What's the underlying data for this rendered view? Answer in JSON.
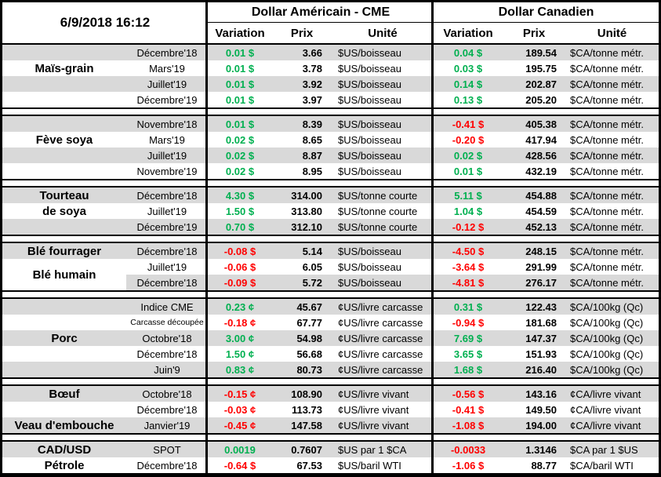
{
  "header": {
    "date": "6/9/2018 16:12",
    "us_title": "Dollar Américain - CME",
    "ca_title": "Dollar Canadien",
    "variation": "Variation",
    "prix": "Prix",
    "unite": "Unité"
  },
  "colors": {
    "green": "#00B050",
    "red": "#FF0000",
    "stripe": "#D9D9D9",
    "border": "#000000"
  },
  "groups": [
    {
      "id": "mais-grain",
      "rows": [
        {
          "shaded": true,
          "name": "",
          "month": "Décembre'18",
          "us": [
            "0.01 $",
            "green",
            "3.66",
            "$US/boisseau"
          ],
          "ca": [
            "0.04 $",
            "green",
            "189.54",
            "$CA/tonne métr."
          ]
        },
        {
          "shaded": false,
          "name": "Maïs-grain",
          "month": "Mars'19",
          "us": [
            "0.01 $",
            "green",
            "3.78",
            "$US/boisseau"
          ],
          "ca": [
            "0.03 $",
            "green",
            "195.75",
            "$CA/tonne métr."
          ]
        },
        {
          "shaded": true,
          "name": "",
          "month": "Juillet'19",
          "us": [
            "0.01 $",
            "green",
            "3.92",
            "$US/boisseau"
          ],
          "ca": [
            "0.14 $",
            "green",
            "202.87",
            "$CA/tonne métr."
          ]
        },
        {
          "shaded": false,
          "name": "",
          "month": "Décembre'19",
          "us": [
            "0.01 $",
            "green",
            "3.97",
            "$US/boisseau"
          ],
          "ca": [
            "0.13 $",
            "green",
            "205.20",
            "$CA/tonne métr."
          ]
        }
      ]
    },
    {
      "id": "feve-soya",
      "rows": [
        {
          "shaded": true,
          "name": "",
          "month": "Novembre'18",
          "us": [
            "0.01 $",
            "green",
            "8.39",
            "$US/boisseau"
          ],
          "ca": [
            "-0.41 $",
            "red",
            "405.38",
            "$CA/tonne métr."
          ]
        },
        {
          "shaded": false,
          "name": "Fève soya",
          "month": "Mars'19",
          "us": [
            "0.02 $",
            "green",
            "8.65",
            "$US/boisseau"
          ],
          "ca": [
            "-0.20 $",
            "red",
            "417.94",
            "$CA/tonne métr."
          ]
        },
        {
          "shaded": true,
          "name": "",
          "month": "Juillet'19",
          "us": [
            "0.02 $",
            "green",
            "8.87",
            "$US/boisseau"
          ],
          "ca": [
            "0.02 $",
            "green",
            "428.56",
            "$CA/tonne métr."
          ]
        },
        {
          "shaded": false,
          "name": "",
          "month": "Novembre'19",
          "us": [
            "0.02 $",
            "green",
            "8.95",
            "$US/boisseau"
          ],
          "ca": [
            "0.01 $",
            "green",
            "432.19",
            "$CA/tonne métr."
          ]
        }
      ]
    },
    {
      "id": "tourteau-de-soya",
      "rows": [
        {
          "shaded": true,
          "name": "Tourteau",
          "month": "Décembre'18",
          "us": [
            "4.30 $",
            "green",
            "314.00",
            "$US/tonne courte"
          ],
          "ca": [
            "5.11 $",
            "green",
            "454.88",
            "$CA/tonne métr."
          ]
        },
        {
          "shaded": false,
          "name": "de soya",
          "month": "Juillet'19",
          "us": [
            "1.50 $",
            "green",
            "313.80",
            "$US/tonne courte"
          ],
          "ca": [
            "1.04 $",
            "green",
            "454.59",
            "$CA/tonne métr."
          ]
        },
        {
          "shaded": true,
          "name": "",
          "month": "Décembre'19",
          "us": [
            "0.70 $",
            "green",
            "312.10",
            "$US/tonne courte"
          ],
          "ca": [
            "-0.12 $",
            "red",
            "452.13",
            "$CA/tonne métr."
          ]
        }
      ]
    },
    {
      "id": "ble",
      "rows": [
        {
          "shaded": true,
          "name": "Blé fourrager",
          "month": "Décembre'18",
          "us": [
            "-0.08 $",
            "red",
            "5.14",
            "$US/boisseau"
          ],
          "ca": [
            "-4.50 $",
            "red",
            "248.15",
            "$CA/tonne métr."
          ]
        },
        {
          "shaded": false,
          "name": "Blé humain",
          "name_span": 2,
          "month": "Juillet'19",
          "us": [
            "-0.06 $",
            "red",
            "6.05",
            "$US/boisseau"
          ],
          "ca": [
            "-3.64 $",
            "red",
            "291.99",
            "$CA/tonne métr."
          ]
        },
        {
          "shaded": true,
          "name": "",
          "name_white": true,
          "month": "Décembre'18",
          "us": [
            "-0.09 $",
            "red",
            "5.72",
            "$US/boisseau"
          ],
          "ca": [
            "-4.81 $",
            "red",
            "276.17",
            "$CA/tonne métr."
          ]
        }
      ]
    },
    {
      "id": "porc",
      "rows": [
        {
          "shaded": true,
          "name": "",
          "month": "Indice CME",
          "us": [
            "0.23 ¢",
            "green",
            "45.67",
            "¢US/livre carcasse"
          ],
          "ca": [
            "0.31 $",
            "green",
            "122.43",
            "$CA/100kg (Qc)"
          ]
        },
        {
          "shaded": false,
          "name": "",
          "month": "Carcasse découpée",
          "month_small": true,
          "us": [
            "-0.18 ¢",
            "red",
            "67.77",
            "¢US/livre carcasse"
          ],
          "ca": [
            "-0.94 $",
            "red",
            "181.68",
            "$CA/100kg (Qc)"
          ]
        },
        {
          "shaded": true,
          "name": "Porc",
          "month": "Octobre'18",
          "us": [
            "3.00 ¢",
            "green",
            "54.98",
            "¢US/livre carcasse"
          ],
          "ca": [
            "7.69 $",
            "green",
            "147.37",
            "$CA/100kg (Qc)"
          ]
        },
        {
          "shaded": false,
          "name": "",
          "month": "Décembre'18",
          "us": [
            "1.50 ¢",
            "green",
            "56.68",
            "¢US/livre carcasse"
          ],
          "ca": [
            "3.65 $",
            "green",
            "151.93",
            "$CA/100kg (Qc)"
          ]
        },
        {
          "shaded": true,
          "name": "",
          "month": "Juin'9",
          "us": [
            "0.83 ¢",
            "green",
            "80.73",
            "¢US/livre carcasse"
          ],
          "ca": [
            "1.68 $",
            "green",
            "216.40",
            "$CA/100kg (Qc)"
          ]
        }
      ]
    },
    {
      "id": "boeuf-veau",
      "rows": [
        {
          "shaded": true,
          "name": "Bœuf",
          "month": "Octobre'18",
          "us": [
            "-0.15 ¢",
            "red",
            "108.90",
            "¢US/livre vivant"
          ],
          "ca": [
            "-0.56 $",
            "red",
            "143.16",
            "¢CA/livre vivant"
          ]
        },
        {
          "shaded": false,
          "name": "",
          "month": "Décembre'18",
          "us": [
            "-0.03 ¢",
            "red",
            "113.73",
            "¢US/livre vivant"
          ],
          "ca": [
            "-0.41 $",
            "red",
            "149.50",
            "¢CA/livre vivant"
          ]
        },
        {
          "shaded": true,
          "name": "Veau d'embouche",
          "month": "Janvier'19",
          "us": [
            "-0.45 ¢",
            "red",
            "147.58",
            "¢US/livre vivant"
          ],
          "ca": [
            "-1.08 $",
            "red",
            "194.00",
            "¢CA/livre vivant"
          ]
        }
      ]
    },
    {
      "id": "cadusd-petrole",
      "rows": [
        {
          "shaded": true,
          "name": "CAD/USD",
          "month": "SPOT",
          "us": [
            "0.0019",
            "green",
            "0.7607",
            "$US par 1 $CA"
          ],
          "ca": [
            "-0.0033",
            "red",
            "1.3146",
            "$CA par 1 $US"
          ]
        },
        {
          "shaded": false,
          "name": "Pétrole",
          "month": "Décembre'18",
          "us": [
            "-0.64 $",
            "red",
            "67.53",
            "$US/baril WTI"
          ],
          "ca": [
            "-1.06 $",
            "red",
            "88.77",
            "$CA/baril WTI"
          ]
        }
      ]
    }
  ]
}
